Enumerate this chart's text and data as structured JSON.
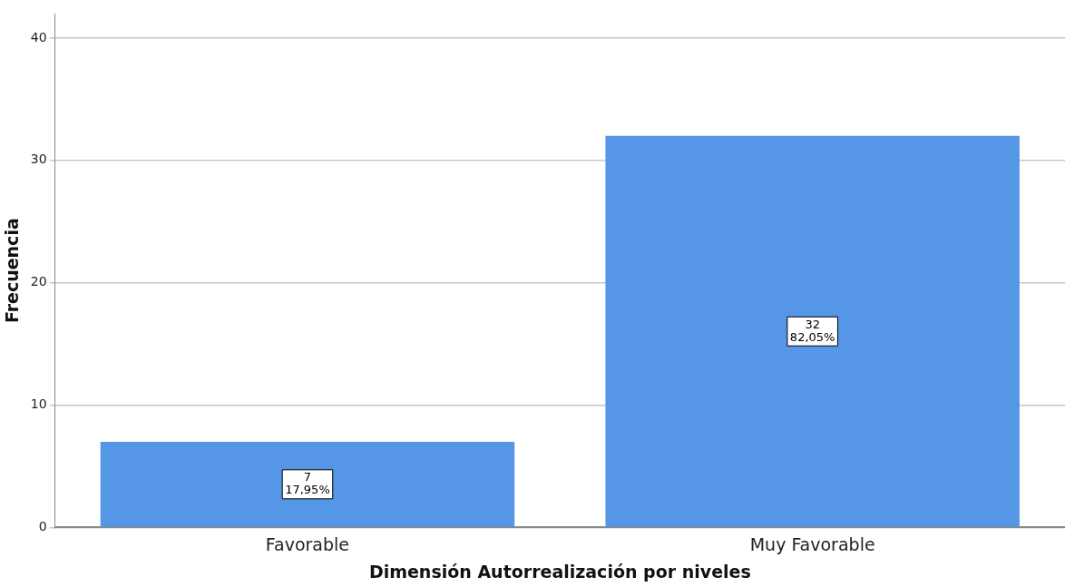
{
  "chart_data": {
    "type": "bar",
    "xlabel": "Dimensión Autorrealización por niveles",
    "ylabel": "Frecuencia",
    "categories": [
      "Favorable",
      "Muy Favorable"
    ],
    "values": [
      7,
      32
    ],
    "color": "#5596e6",
    "value_labels": [
      "7\n17,95%",
      "32\n82,05%"
    ],
    "ylim": [
      0,
      42
    ],
    "yticks": [
      0,
      10,
      20,
      30,
      40
    ],
    "grid": "y",
    "legend": false
  }
}
